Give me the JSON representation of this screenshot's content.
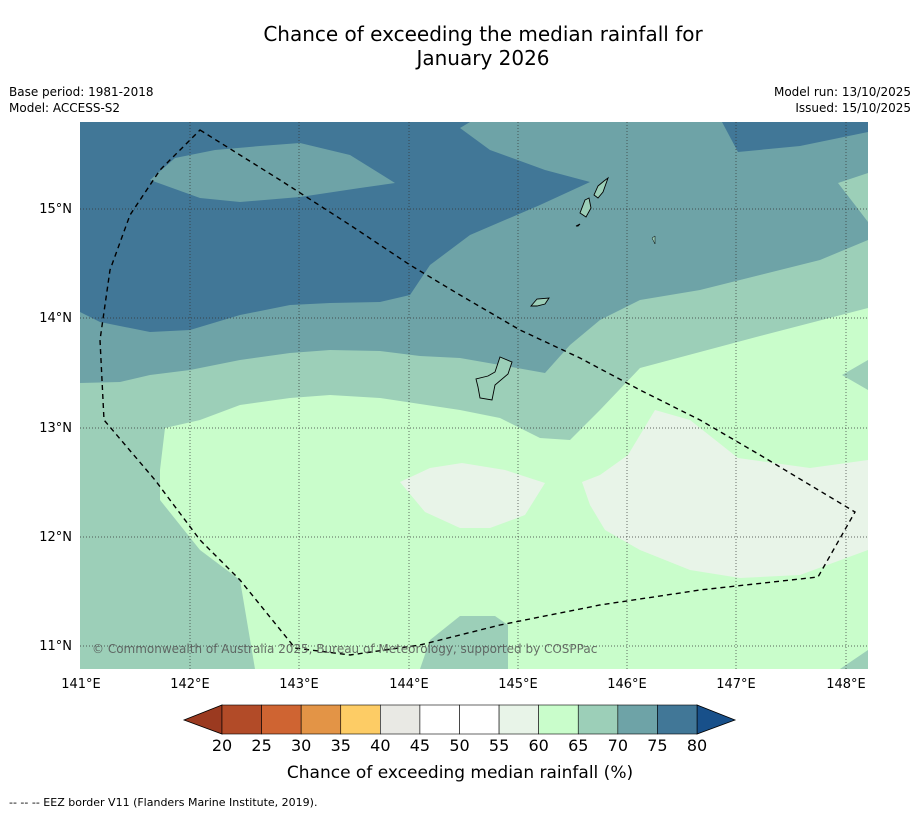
{
  "title": {
    "line1": "Chance of exceeding the median rainfall for",
    "line2": "January 2026"
  },
  "meta_left": {
    "base_period": "Base period: 1981-2018",
    "model": "Model: ACCESS-S2"
  },
  "meta_right": {
    "model_run": "Model run: 13/10/2025",
    "issued": "Issued: 15/10/2025"
  },
  "map": {
    "lon_labels": [
      "141°E",
      "142°E",
      "143°E",
      "144°E",
      "145°E",
      "146°E",
      "147°E",
      "148°E"
    ],
    "lat_labels": [
      "15°N",
      "14°N",
      "13°N",
      "12°N",
      "11°N"
    ],
    "copyright": "© Commonwealth of Australia 2025, Bureau of Meteorology, supported by COSPPac"
  },
  "colorbar": {
    "ticks": [
      "20",
      "25",
      "30",
      "35",
      "40",
      "45",
      "50",
      "55",
      "60",
      "65",
      "70",
      "75",
      "80"
    ],
    "colors": [
      "#b24b28",
      "#cf6432",
      "#e39446",
      "#fdcc65",
      "#e9e9e4",
      "#ffffff",
      "#ffffff",
      "#e8f4e8",
      "#c9fdcb",
      "#9ccfb8",
      "#6ea3a7",
      "#417797"
    ],
    "under_color": "#9b3a20",
    "over_color": "#18508a",
    "label": "Chance of exceeding median rainfall (%)"
  },
  "footnote": "-- -- -- EEZ border V11 (Flanders Marine Institute, 2019)."
}
